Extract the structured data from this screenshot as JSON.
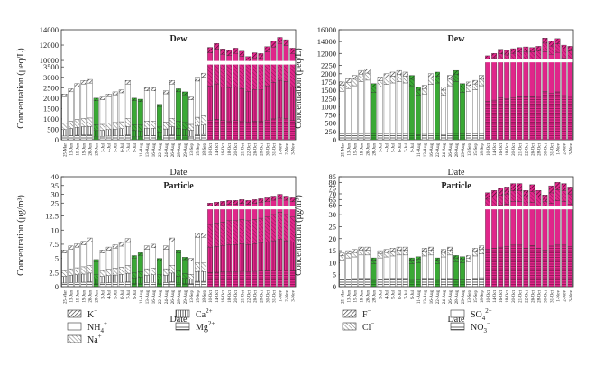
{
  "chart_data": [
    {
      "type": "bar",
      "panel": "cation-dew",
      "title": "Dew",
      "xlabel": "Date",
      "ylabel": "Concentration (μeq/L)",
      "y_ticks_lower": [
        0,
        500,
        1000,
        1500,
        2000,
        2500,
        3000,
        3500
      ],
      "y_ticks_upper": [
        10000,
        12000,
        14000
      ],
      "y_break": [
        3700,
        9700
      ],
      "categories": [
        "25-Mar",
        "13-Jun",
        "15-Jun",
        "19-Jun",
        "26-Jun",
        "28-Jun",
        "3-Jul",
        "4-Jul",
        "5-Jul",
        "6-Jul",
        "7-Jul",
        "9-Jul",
        "11-Aug",
        "13-Aug",
        "16-Aug",
        "22-Aug",
        "24-Aug",
        "26-Aug",
        "28-Aug",
        "29-Aug",
        "13-Sep",
        "15-Sep",
        "18-Sep",
        "10-Oct",
        "14-Oct",
        "16-Oct",
        "18-Oct",
        "20-Oct",
        "21-Oct",
        "22-Oct",
        "26-Oct",
        "28-Oct",
        "30-Oct",
        "31-Oct",
        "1-Nov",
        "2-Nov",
        "3-Nov"
      ],
      "totals": [
        2200,
        2450,
        2700,
        2850,
        2900,
        2000,
        2050,
        2200,
        2300,
        2400,
        2850,
        2000,
        1950,
        2500,
        2500,
        1700,
        2350,
        2850,
        2450,
        2300,
        2050,
        3000,
        3200,
        11700,
        12200,
        11500,
        11300,
        11600,
        11200,
        10500,
        11000,
        10900,
        11800,
        12500,
        13000,
        12700,
        11600
      ]
    },
    {
      "type": "bar",
      "panel": "anion-dew",
      "title": "Dew",
      "xlabel": "Date",
      "ylabel": "Concentration (μeq/L)",
      "y_ticks_lower": [
        0,
        250,
        500,
        750,
        1000,
        1250,
        1500,
        1750,
        2000,
        2250
      ],
      "y_ticks_upper": [
        12000,
        14000,
        16000
      ],
      "y_break": [
        2400,
        10800
      ],
      "categories": [
        "25-Mar",
        "13-Jun",
        "15-Jun",
        "19-Jun",
        "26-Jun",
        "28-Jun",
        "3-Jul",
        "4-Jul",
        "5-Jul",
        "6-Jul",
        "7-Jul",
        "9-Jul",
        "11-Aug",
        "13-Aug",
        "16-Aug",
        "22-Aug",
        "24-Aug",
        "26-Aug",
        "28-Aug",
        "29-Aug",
        "13-Sep",
        "15-Sep",
        "18-Sep",
        "10-Oct",
        "14-Oct",
        "16-Oct",
        "18-Oct",
        "20-Oct",
        "21-Oct",
        "22-Oct",
        "26-Oct",
        "28-Oct",
        "30-Oct",
        "31-Oct",
        "1-Nov",
        "2-Nov",
        "3-Nov"
      ],
      "totals": [
        1750,
        1850,
        1950,
        2100,
        2150,
        1700,
        1900,
        2000,
        2050,
        2100,
        2050,
        1950,
        1600,
        1650,
        2000,
        2050,
        1600,
        1950,
        2100,
        1700,
        1750,
        1800,
        1950,
        11600,
        12000,
        12700,
        12500,
        12800,
        13000,
        13100,
        13000,
        13200,
        14600,
        14100,
        14500,
        13400,
        13200
      ]
    },
    {
      "type": "bar",
      "panel": "cation-particle",
      "title": "Particle",
      "xlabel": "Date",
      "ylabel": "Concentration (μg/m³)",
      "y_ticks_lower": [
        0,
        2.5,
        5,
        7.5,
        10,
        12.5
      ],
      "y_ticks_upper": [
        25,
        30,
        35,
        40
      ],
      "y_break": [
        14,
        22.5
      ],
      "categories": [
        "25-Mar",
        "13-Jun",
        "15-Jun",
        "19-Jun",
        "26-Jun",
        "28-Jun",
        "3-Jul",
        "4-Jul",
        "5-Jul",
        "6-Jul",
        "7-Jul",
        "9-Jul",
        "11-Aug",
        "13-Aug",
        "16-Aug",
        "22-Aug",
        "24-Aug",
        "26-Aug",
        "28-Aug",
        "29-Aug",
        "13-Sep",
        "15-Sep",
        "18-Sep",
        "10-Oct",
        "14-Oct",
        "16-Oct",
        "18-Oct",
        "20-Oct",
        "21-Oct",
        "22-Oct",
        "26-Oct",
        "28-Oct",
        "30-Oct",
        "31-Oct",
        "1-Nov",
        "2-Nov",
        "3-Nov"
      ],
      "totals": [
        6.5,
        7.2,
        7.6,
        8.0,
        8.6,
        4.8,
        6.5,
        7.0,
        7.4,
        7.8,
        8.5,
        5.5,
        6.0,
        7.2,
        7.5,
        5.0,
        7.2,
        8.6,
        6.5,
        5.2,
        5.0,
        9.5,
        9.5,
        25.0,
        25.5,
        26.0,
        26.5,
        26.5,
        27.0,
        26.5,
        27.0,
        27.5,
        28.0,
        29.0,
        30.0,
        29.0,
        28.0
      ]
    },
    {
      "type": "bar",
      "panel": "anion-particle",
      "title": "Particle",
      "xlabel": "Date",
      "ylabel": "Concentration (μg/m³)",
      "y_ticks_lower": [
        0,
        5,
        10,
        15,
        20,
        25,
        30
      ],
      "y_ticks_upper": [
        60,
        65,
        70,
        75,
        80,
        85
      ],
      "y_break": [
        33,
        58
      ],
      "categories": [
        "25-Mar",
        "13-Jun",
        "15-Jun",
        "19-Jun",
        "26-Jun",
        "28-Jun",
        "3-Jul",
        "4-Jul",
        "5-Jul",
        "6-Jul",
        "7-Jul",
        "9-Jul",
        "11-Aug",
        "13-Aug",
        "16-Aug",
        "22-Aug",
        "24-Aug",
        "26-Aug",
        "28-Aug",
        "29-Aug",
        "13-Sep",
        "15-Sep",
        "18-Sep",
        "10-Oct",
        "14-Oct",
        "16-Oct",
        "18-Oct",
        "20-Oct",
        "21-Oct",
        "22-Oct",
        "26-Oct",
        "28-Oct",
        "30-Oct",
        "31-Oct",
        "1-Nov",
        "2-Nov",
        "3-Nov"
      ],
      "totals": [
        14,
        15,
        15.5,
        16.5,
        16.5,
        12,
        15,
        15.5,
        16,
        16.5,
        16.5,
        12,
        12.5,
        16,
        16.5,
        12,
        15.5,
        16.5,
        13,
        12.5,
        13,
        16,
        17,
        71,
        73,
        75,
        76,
        79,
        79,
        73,
        78,
        73,
        69,
        77,
        80,
        79,
        76
      ]
    }
  ],
  "legends": [
    {
      "items": [
        {
          "symbol": "K",
          "charge": "+",
          "pattern": "k"
        },
        {
          "symbol": "NH",
          "sub": "4",
          "charge": "+",
          "pattern": "nh4"
        },
        {
          "symbol": "Na",
          "charge": "+",
          "pattern": "na"
        },
        {
          "symbol": "Ca",
          "charge": "2+",
          "pattern": "ca"
        },
        {
          "symbol": "Mg",
          "charge": "2+",
          "pattern": "mg"
        }
      ]
    },
    {
      "items": [
        {
          "symbol": "F",
          "charge": "−",
          "pattern": "f"
        },
        {
          "symbol": "Cl",
          "charge": "−",
          "pattern": "cl"
        },
        {
          "symbol": "SO",
          "sub": "4",
          "charge": "2−",
          "pattern": "so4"
        },
        {
          "symbol": "NO",
          "sub": "3",
          "charge": "−",
          "pattern": "no3"
        }
      ]
    }
  ],
  "colors": {
    "green": "#3aa935",
    "magenta": "#e0268a",
    "edge": "#333333"
  }
}
